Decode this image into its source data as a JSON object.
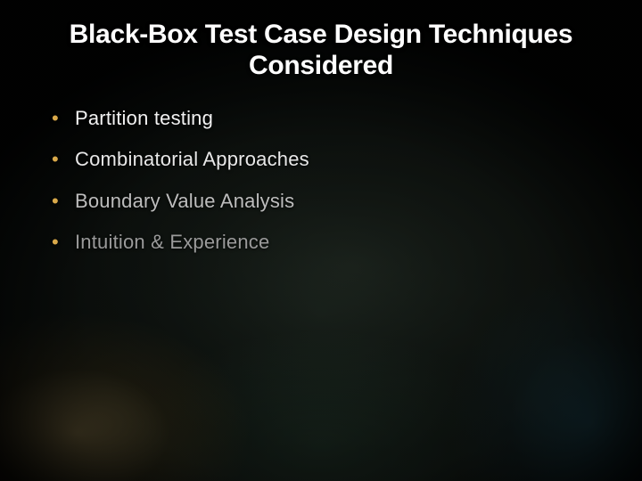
{
  "slide": {
    "title": "Black-Box Test Case Design Techniques Considered",
    "title_fontsize": 30,
    "title_color": "#ffffff",
    "title_font_family": "Arial",
    "title_font_weight": 700,
    "bullets": [
      {
        "text": "Partition testing",
        "color": "#f2f2f2"
      },
      {
        "text": "Combinatorial Approaches",
        "color": "#e8e8e8"
      },
      {
        "text": "Boundary Value Analysis",
        "color": "#bdbdbd"
      },
      {
        "text": "Intuition & Experience",
        "color": "#9a9a9a"
      }
    ],
    "bullet_fontsize": 22,
    "bullet_spacing": 20,
    "bullet_marker_color": "#d9a94a",
    "bullet_font_family": "Verdana",
    "background": {
      "base_color": "#05090a",
      "glow_bottom_left": "#f0c46a",
      "glow_bottom_right": "#2a7896",
      "mid_tone": "#2f3a2e"
    }
  }
}
